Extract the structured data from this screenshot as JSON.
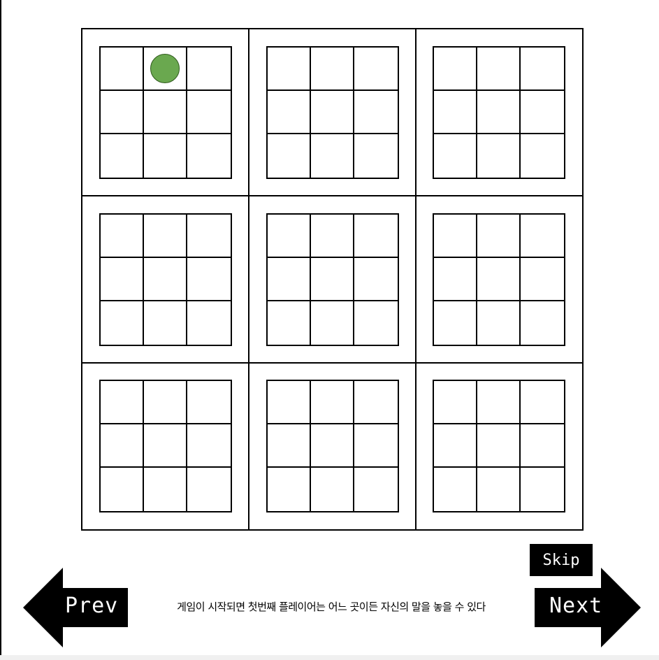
{
  "game": {
    "board_rows": 3,
    "board_cols": 3,
    "sub_rows": 3,
    "sub_cols": 3,
    "pieces": [
      {
        "board_row": 0,
        "board_col": 0,
        "cell_row": 0,
        "cell_col": 1,
        "color": "#6aa84f"
      }
    ]
  },
  "controls": {
    "prev_label": "Prev",
    "next_label": "Next",
    "skip_label": "Skip"
  },
  "instruction_text": "게임이 시작되면 첫번째 플레이어는 어느 곳이든 자신의 말을 놓을 수 있다",
  "colors": {
    "line": "#000000",
    "piece": "#6aa84f",
    "button_bg": "#000000",
    "button_text": "#ffffff"
  }
}
